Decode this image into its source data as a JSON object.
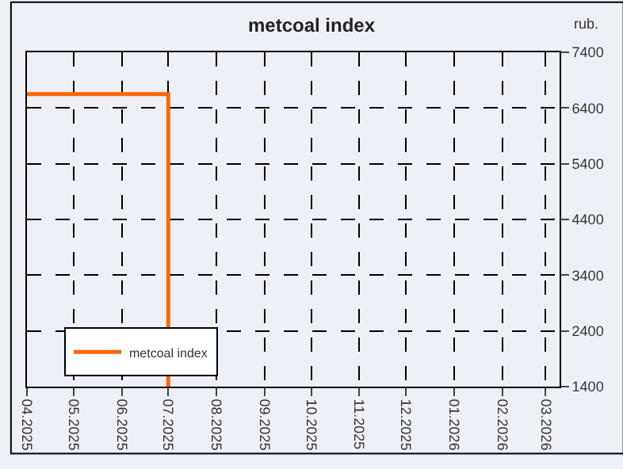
{
  "chart_data": {
    "type": "line",
    "title": "metcoal index",
    "ylabel": "rub.",
    "x": [
      "2025-04",
      "2025-07",
      "2025-07"
    ],
    "series": [
      {
        "name": "metcoal index",
        "color": "#ff6600",
        "values": [
          6650,
          6650,
          1400
        ]
      }
    ],
    "xlim": [
      "2025-04-01",
      "2026-03-10"
    ],
    "xticks": [
      {
        "value": "2025-04",
        "label": "04.2025"
      },
      {
        "value": "2025-05",
        "label": "05.2025"
      },
      {
        "value": "2025-06",
        "label": "06.2025"
      },
      {
        "value": "2025-07",
        "label": "07.2025"
      },
      {
        "value": "2025-08",
        "label": "08.2025"
      },
      {
        "value": "2025-09",
        "label": "09.2025"
      },
      {
        "value": "2025-10",
        "label": "10.2025"
      },
      {
        "value": "2025-11",
        "label": "11.2025"
      },
      {
        "value": "2025-12",
        "label": "12.2025"
      },
      {
        "value": "2026-01",
        "label": "01.2026"
      },
      {
        "value": "2026-02",
        "label": "02.2026"
      },
      {
        "value": "2026-03",
        "label": "03.2026"
      }
    ],
    "ylim": [
      1400,
      7400
    ],
    "yticks": [
      1400,
      2400,
      3400,
      4400,
      5400,
      6400,
      7400
    ],
    "grid": true,
    "legend": "bottom left",
    "marker": "none",
    "line_style": "solid"
  }
}
